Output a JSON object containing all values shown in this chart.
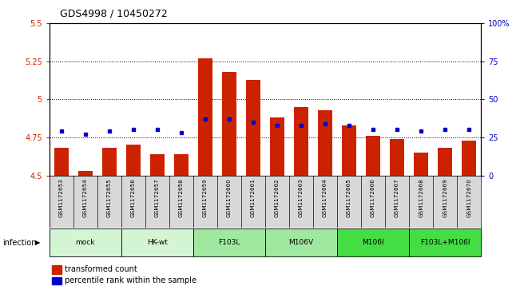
{
  "title": "GDS4998 / 10450272",
  "samples": [
    "GSM1172653",
    "GSM1172654",
    "GSM1172655",
    "GSM1172656",
    "GSM1172657",
    "GSM1172658",
    "GSM1172659",
    "GSM1172660",
    "GSM1172661",
    "GSM1172662",
    "GSM1172663",
    "GSM1172664",
    "GSM1172665",
    "GSM1172666",
    "GSM1172667",
    "GSM1172668",
    "GSM1172669",
    "GSM1172670"
  ],
  "transformed_counts": [
    4.68,
    4.53,
    4.68,
    4.7,
    4.64,
    4.64,
    5.27,
    5.18,
    5.13,
    4.88,
    4.95,
    4.93,
    4.83,
    4.76,
    4.74,
    4.65,
    4.68,
    4.73
  ],
  "percentile_ranks": [
    29,
    27,
    29,
    30,
    30,
    28,
    37,
    37,
    35,
    33,
    33,
    34,
    33,
    30,
    30,
    29,
    30,
    30
  ],
  "groups": [
    {
      "label": "mock",
      "start": 0,
      "end": 2,
      "color": "#d4f5d4"
    },
    {
      "label": "HK-wt",
      "start": 3,
      "end": 5,
      "color": "#d4f5d4"
    },
    {
      "label": "F103L",
      "start": 6,
      "end": 8,
      "color": "#a0e8a0"
    },
    {
      "label": "M106V",
      "start": 9,
      "end": 11,
      "color": "#a0e8a0"
    },
    {
      "label": "M106I",
      "start": 12,
      "end": 14,
      "color": "#44dd44"
    },
    {
      "label": "F103L+M106I",
      "start": 15,
      "end": 17,
      "color": "#44dd44"
    }
  ],
  "ylim_left": [
    4.5,
    5.5
  ],
  "ylim_right": [
    0,
    100
  ],
  "yticks_left": [
    4.5,
    4.75,
    5.0,
    5.25,
    5.5
  ],
  "yticks_right": [
    0,
    25,
    50,
    75,
    100
  ],
  "bar_color": "#cc2200",
  "dot_color": "#0000cc",
  "bg_color": "#d8d8d8",
  "bar_bottom": 4.5
}
